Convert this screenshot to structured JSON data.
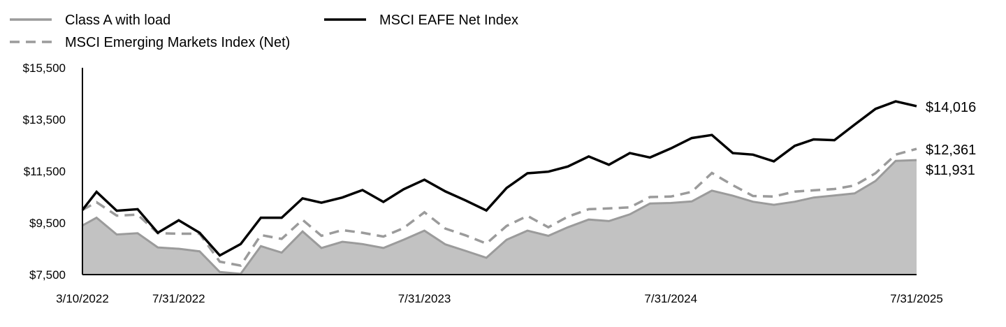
{
  "chart_data": {
    "type": "line",
    "legend": {
      "placement": "top-left",
      "entries": [
        {
          "label": "Class A with load",
          "series": "class_a"
        },
        {
          "label": "MSCI EAFE Net Index",
          "series": "eafe"
        },
        {
          "label": "MSCI Emerging Markets Index (Net)",
          "series": "em"
        }
      ]
    },
    "ylim": [
      7500,
      15500
    ],
    "y_ticks": [
      {
        "value": 7500,
        "label": "$7,500"
      },
      {
        "value": 9500,
        "label": "$9,500"
      },
      {
        "value": 11500,
        "label": "$11,500"
      },
      {
        "value": 13500,
        "label": "$13,500"
      },
      {
        "value": 15500,
        "label": "$15,500"
      }
    ],
    "x_ticks": [
      {
        "value": "2022-03-10",
        "label": "3/10/2022"
      },
      {
        "value": "2022-07-31",
        "label": "7/31/2022"
      },
      {
        "value": "2023-07-31",
        "label": "7/31/2023"
      },
      {
        "value": "2024-07-31",
        "label": "7/31/2024"
      },
      {
        "value": "2025-07-31",
        "label": "7/31/2025"
      }
    ],
    "x": [
      "2022-03-10",
      "2022-03-31",
      "2022-04-30",
      "2022-05-31",
      "2022-06-30",
      "2022-07-31",
      "2022-08-31",
      "2022-09-30",
      "2022-10-31",
      "2022-11-30",
      "2022-12-31",
      "2023-01-31",
      "2023-02-28",
      "2023-03-31",
      "2023-04-30",
      "2023-05-31",
      "2023-06-30",
      "2023-07-31",
      "2023-08-31",
      "2023-09-30",
      "2023-10-31",
      "2023-11-30",
      "2023-12-31",
      "2024-01-31",
      "2024-02-29",
      "2024-03-31",
      "2024-04-30",
      "2024-05-31",
      "2024-06-30",
      "2024-07-31",
      "2024-08-31",
      "2024-09-30",
      "2024-10-31",
      "2024-11-30",
      "2024-12-31",
      "2025-01-31",
      "2025-02-28",
      "2025-03-31",
      "2025-04-30",
      "2025-05-31",
      "2025-06-30",
      "2025-07-31"
    ],
    "series": [
      {
        "id": "class_a",
        "name": "Class A with load",
        "style": "area",
        "color": "#9b9b9b",
        "fill": "#c2c2c2",
        "values": [
          9400,
          9700,
          9050,
          9100,
          8550,
          8500,
          8400,
          7600,
          7530,
          8600,
          8350,
          9170,
          8530,
          8770,
          8680,
          8530,
          8850,
          9200,
          8670,
          8420,
          8150,
          8850,
          9200,
          9000,
          9330,
          9630,
          9570,
          9830,
          10250,
          10270,
          10330,
          10750,
          10550,
          10320,
          10200,
          10320,
          10480,
          10560,
          10640,
          11120,
          11900,
          11931
        ]
      },
      {
        "id": "em",
        "name": "MSCI Emerging Markets Index (Net)",
        "style": "dashed",
        "color": "#9b9b9b",
        "values": [
          10000,
          10300,
          9780,
          9820,
          9100,
          9080,
          9080,
          8000,
          7850,
          9030,
          8880,
          9620,
          9000,
          9220,
          9120,
          8970,
          9300,
          9910,
          9280,
          9020,
          8700,
          9380,
          9770,
          9330,
          9740,
          10030,
          10060,
          10100,
          10500,
          10520,
          10700,
          11430,
          10960,
          10540,
          10520,
          10710,
          10760,
          10810,
          10950,
          11420,
          12140,
          12361
        ]
      },
      {
        "id": "eafe",
        "name": "MSCI EAFE Net Index",
        "style": "solid",
        "color": "#000000",
        "values": [
          10000,
          10700,
          9970,
          10030,
          9120,
          9600,
          9120,
          8240,
          8680,
          9700,
          9700,
          10450,
          10280,
          10480,
          10770,
          10310,
          10800,
          11170,
          10720,
          10370,
          9980,
          10850,
          11420,
          11480,
          11680,
          12070,
          11750,
          12200,
          12030,
          12380,
          12780,
          12900,
          12200,
          12140,
          11880,
          12480,
          12730,
          12700,
          13300,
          13910,
          14200,
          14016
        ]
      }
    ],
    "end_labels": [
      {
        "series": "eafe",
        "label": "$14,016"
      },
      {
        "series": "em",
        "label": "$12,361"
      },
      {
        "series": "class_a",
        "label": "$11,931"
      }
    ],
    "grid": false
  }
}
